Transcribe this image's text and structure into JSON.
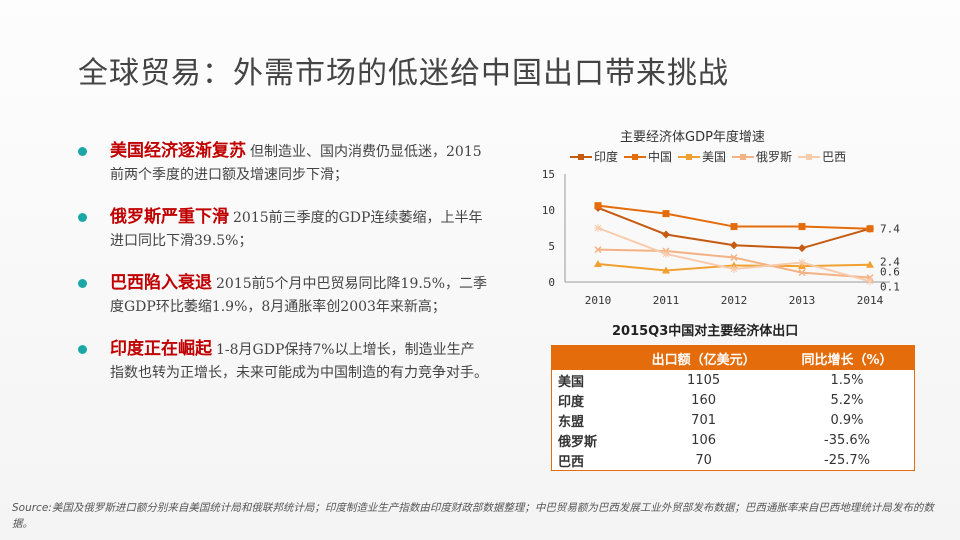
{
  "title": "全球贸易：外需市场的低迷给中国出口带来挑战",
  "bullets": [
    {
      "highlight": "美国经济逐渐复苏",
      "body": "但制造业、国内消费仍显低迷，2015前两个季度的进口额及增速同步下滑；"
    },
    {
      "highlight": "俄罗斯严重下滑",
      "body": "2015前三季度的GDP连续萎缩，上半年进口同比下滑39.5%；"
    },
    {
      "highlight": "巴西陷入衰退",
      "body": "2015前5个月中巴贸易同比降19.5%，二季度GDP环比萎缩1.9%，8月通胀率创2003年来新高；"
    },
    {
      "highlight": "印度正在崛起",
      "body": "1-8月GDP保持7%以上增长，制造业生产指数也转为正增长，未来可能成为中国制造的有力竞争对手。"
    }
  ],
  "chart_data": {
    "type": "line",
    "title": "主要经济体GDP年度增速",
    "x": [
      "2010",
      "2011",
      "2012",
      "2013",
      "2014"
    ],
    "ylim": [
      0,
      15
    ],
    "yticks": [
      "0",
      "5",
      "10",
      "15"
    ],
    "series": [
      {
        "name": "印度",
        "values": [
          10.3,
          6.6,
          5.1,
          4.7,
          7.4
        ],
        "color": "#c55a11",
        "marker": "diamond"
      },
      {
        "name": "中国",
        "values": [
          10.6,
          9.5,
          7.7,
          7.7,
          7.4
        ],
        "color": "#e46c0a",
        "marker": "square"
      },
      {
        "name": "美国",
        "values": [
          2.5,
          1.6,
          2.3,
          2.2,
          2.4
        ],
        "color": "#f0a030",
        "marker": "triangle"
      },
      {
        "name": "俄罗斯",
        "values": [
          4.5,
          4.3,
          3.4,
          1.3,
          0.6
        ],
        "color": "#f4b183",
        "marker": "x"
      },
      {
        "name": "巴西",
        "values": [
          7.5,
          3.9,
          1.8,
          2.7,
          0.1
        ],
        "color": "#f8cbad",
        "marker": "star"
      }
    ],
    "end_labels": [
      "7.4",
      "2.4",
      "0.6",
      "0.1"
    ]
  },
  "table": {
    "title": "2015Q3中国对主要经济体出口",
    "headers": [
      "",
      "出口额（亿美元）",
      "同比增长（%）"
    ],
    "rows": [
      [
        "美国",
        "1105",
        "1.5%"
      ],
      [
        "印度",
        "160",
        "5.2%"
      ],
      [
        "东盟",
        "701",
        "0.9%"
      ],
      [
        "俄罗斯",
        "106",
        "-35.6%"
      ],
      [
        "巴西",
        "70",
        "-25.7%"
      ]
    ]
  },
  "source": "Source:美国及俄罗斯进口额分别来自美国统计局和俄联邦统计局；印度制造业生产指数由印度财政部数据整理；中巴贸易额为巴西发展工业外贸部发布数据；巴西通胀率来自巴西地理统计局发布的数据。"
}
